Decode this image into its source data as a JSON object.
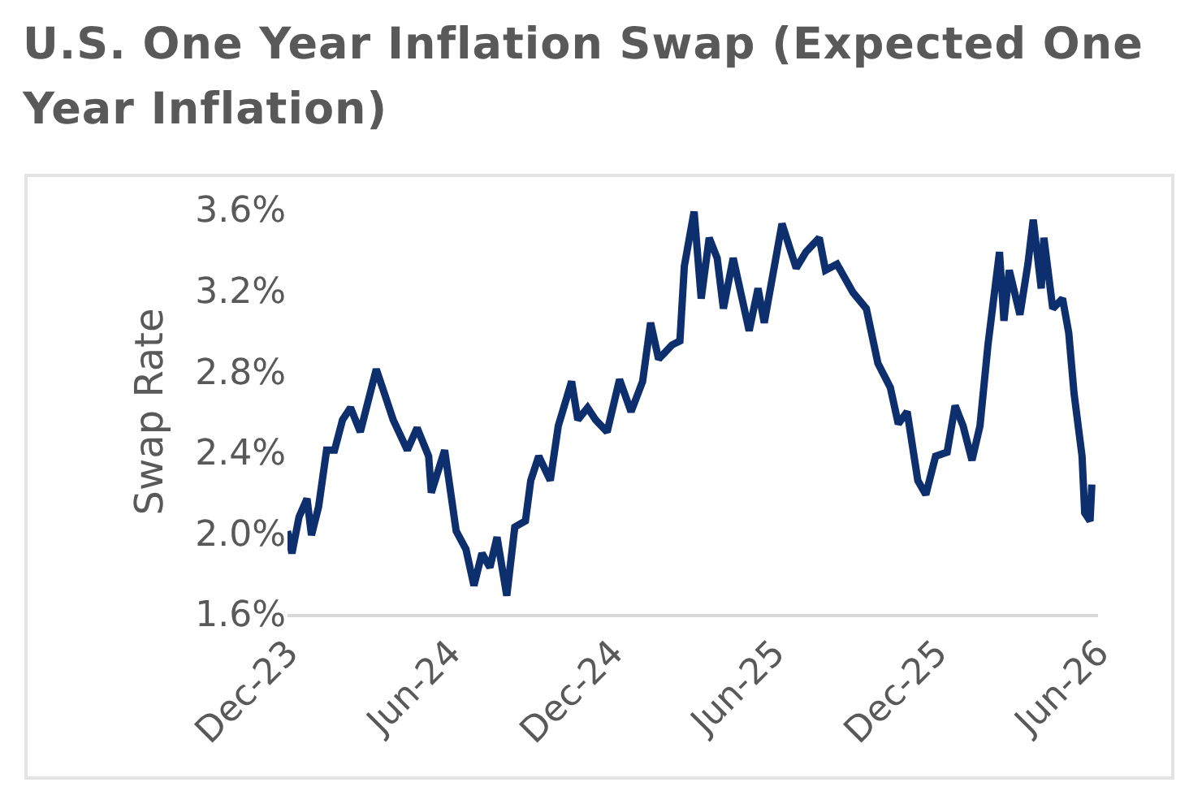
{
  "chart_data": {
    "type": "line",
    "title": "U.S. One Year Inflation Swap (Expected One Year Inflation)",
    "ylabel": "Swap Rate",
    "x": [
      "2023-12-01",
      "2023-12-06",
      "2023-12-14",
      "2023-12-23",
      "2023-12-28",
      "2024-01-05",
      "2024-01-14",
      "2024-01-23",
      "2024-02-01",
      "2024-02-10",
      "2024-02-21",
      "2024-03-10",
      "2024-03-20",
      "2024-03-29",
      "2024-04-14",
      "2024-04-25",
      "2024-05-08",
      "2024-05-11",
      "2024-05-26",
      "2024-06-08",
      "2024-06-19",
      "2024-06-28",
      "2024-07-07",
      "2024-07-16",
      "2024-07-24",
      "2024-08-04",
      "2024-08-13",
      "2024-08-25",
      "2024-08-31",
      "2024-09-09",
      "2024-09-22",
      "2024-10-01",
      "2024-10-16",
      "2024-10-23",
      "2024-11-03",
      "2024-11-12",
      "2024-11-25",
      "2024-12-09",
      "2024-12-22",
      "2025-01-04",
      "2025-01-13",
      "2025-01-22",
      "2025-02-06",
      "2025-02-15",
      "2025-02-20",
      "2025-03-03",
      "2025-03-11",
      "2025-03-20",
      "2025-03-29",
      "2025-04-05",
      "2025-04-16",
      "2025-05-04",
      "2025-05-14",
      "2025-05-21",
      "2025-06-10",
      "2025-06-26",
      "2025-07-07",
      "2025-07-22",
      "2025-07-29",
      "2025-08-11",
      "2025-08-29",
      "2025-09-13",
      "2025-09-26",
      "2025-10-10",
      "2025-10-19",
      "2025-10-29",
      "2025-11-10",
      "2025-11-19",
      "2025-11-30",
      "2025-12-13",
      "2025-12-22",
      "2025-12-31",
      "2026-01-10",
      "2026-01-19",
      "2026-01-28",
      "2026-02-10",
      "2026-02-15",
      "2026-02-21",
      "2026-03-05",
      "2026-03-14",
      "2026-03-20",
      "2026-03-29",
      "2026-04-01",
      "2026-04-11",
      "2026-04-22",
      "2026-04-29",
      "2026-05-05",
      "2026-05-14",
      "2026-05-17",
      "2026-05-23",
      "2026-05-25"
    ],
    "series": [
      {
        "color": "#0d2f6e",
        "values": [
          2.01,
          1.9,
          2.08,
          2.17,
          1.99,
          2.13,
          2.41,
          2.41,
          2.56,
          2.62,
          2.5,
          2.81,
          2.68,
          2.56,
          2.41,
          2.52,
          2.38,
          2.2,
          2.41,
          2.01,
          1.92,
          1.74,
          1.9,
          1.83,
          1.98,
          1.69,
          2.03,
          2.06,
          2.26,
          2.38,
          2.26,
          2.53,
          2.75,
          2.56,
          2.62,
          2.56,
          2.5,
          2.76,
          2.6,
          2.75,
          3.04,
          2.86,
          2.93,
          2.95,
          3.32,
          3.59,
          3.16,
          3.46,
          3.36,
          3.11,
          3.36,
          3.0,
          3.21,
          3.04,
          3.53,
          3.31,
          3.39,
          3.46,
          3.3,
          3.33,
          3.19,
          3.11,
          2.84,
          2.72,
          2.54,
          2.6,
          2.26,
          2.19,
          2.38,
          2.4,
          2.63,
          2.53,
          2.36,
          2.53,
          2.93,
          3.39,
          3.05,
          3.3,
          3.08,
          3.33,
          3.55,
          3.21,
          3.46,
          3.11,
          3.16,
          2.99,
          2.69,
          2.38,
          2.1,
          2.06,
          2.24
        ]
      }
    ],
    "xlim": [
      "2023-12-01",
      "2026-06-01"
    ],
    "xticks": [
      {
        "value": "2023-12-01",
        "label": "Dec-23"
      },
      {
        "value": "2024-06-01",
        "label": "Jun-24"
      },
      {
        "value": "2024-12-01",
        "label": "Dec-24"
      },
      {
        "value": "2025-06-01",
        "label": "Jun-25"
      },
      {
        "value": "2025-12-01",
        "label": "Dec-25"
      },
      {
        "value": "2026-06-01",
        "label": "Jun-26"
      }
    ],
    "ylim": [
      1.6,
      3.6
    ],
    "yticks": [
      {
        "value": 1.6,
        "label": "1.6%"
      },
      {
        "value": 2.0,
        "label": "2.0%"
      },
      {
        "value": 2.4,
        "label": "2.4%"
      },
      {
        "value": 2.8,
        "label": "2.8%"
      },
      {
        "value": 3.2,
        "label": "3.2%"
      },
      {
        "value": 3.6,
        "label": "3.6%"
      }
    ],
    "grid": false,
    "marker": "none",
    "line_style": "solid"
  }
}
